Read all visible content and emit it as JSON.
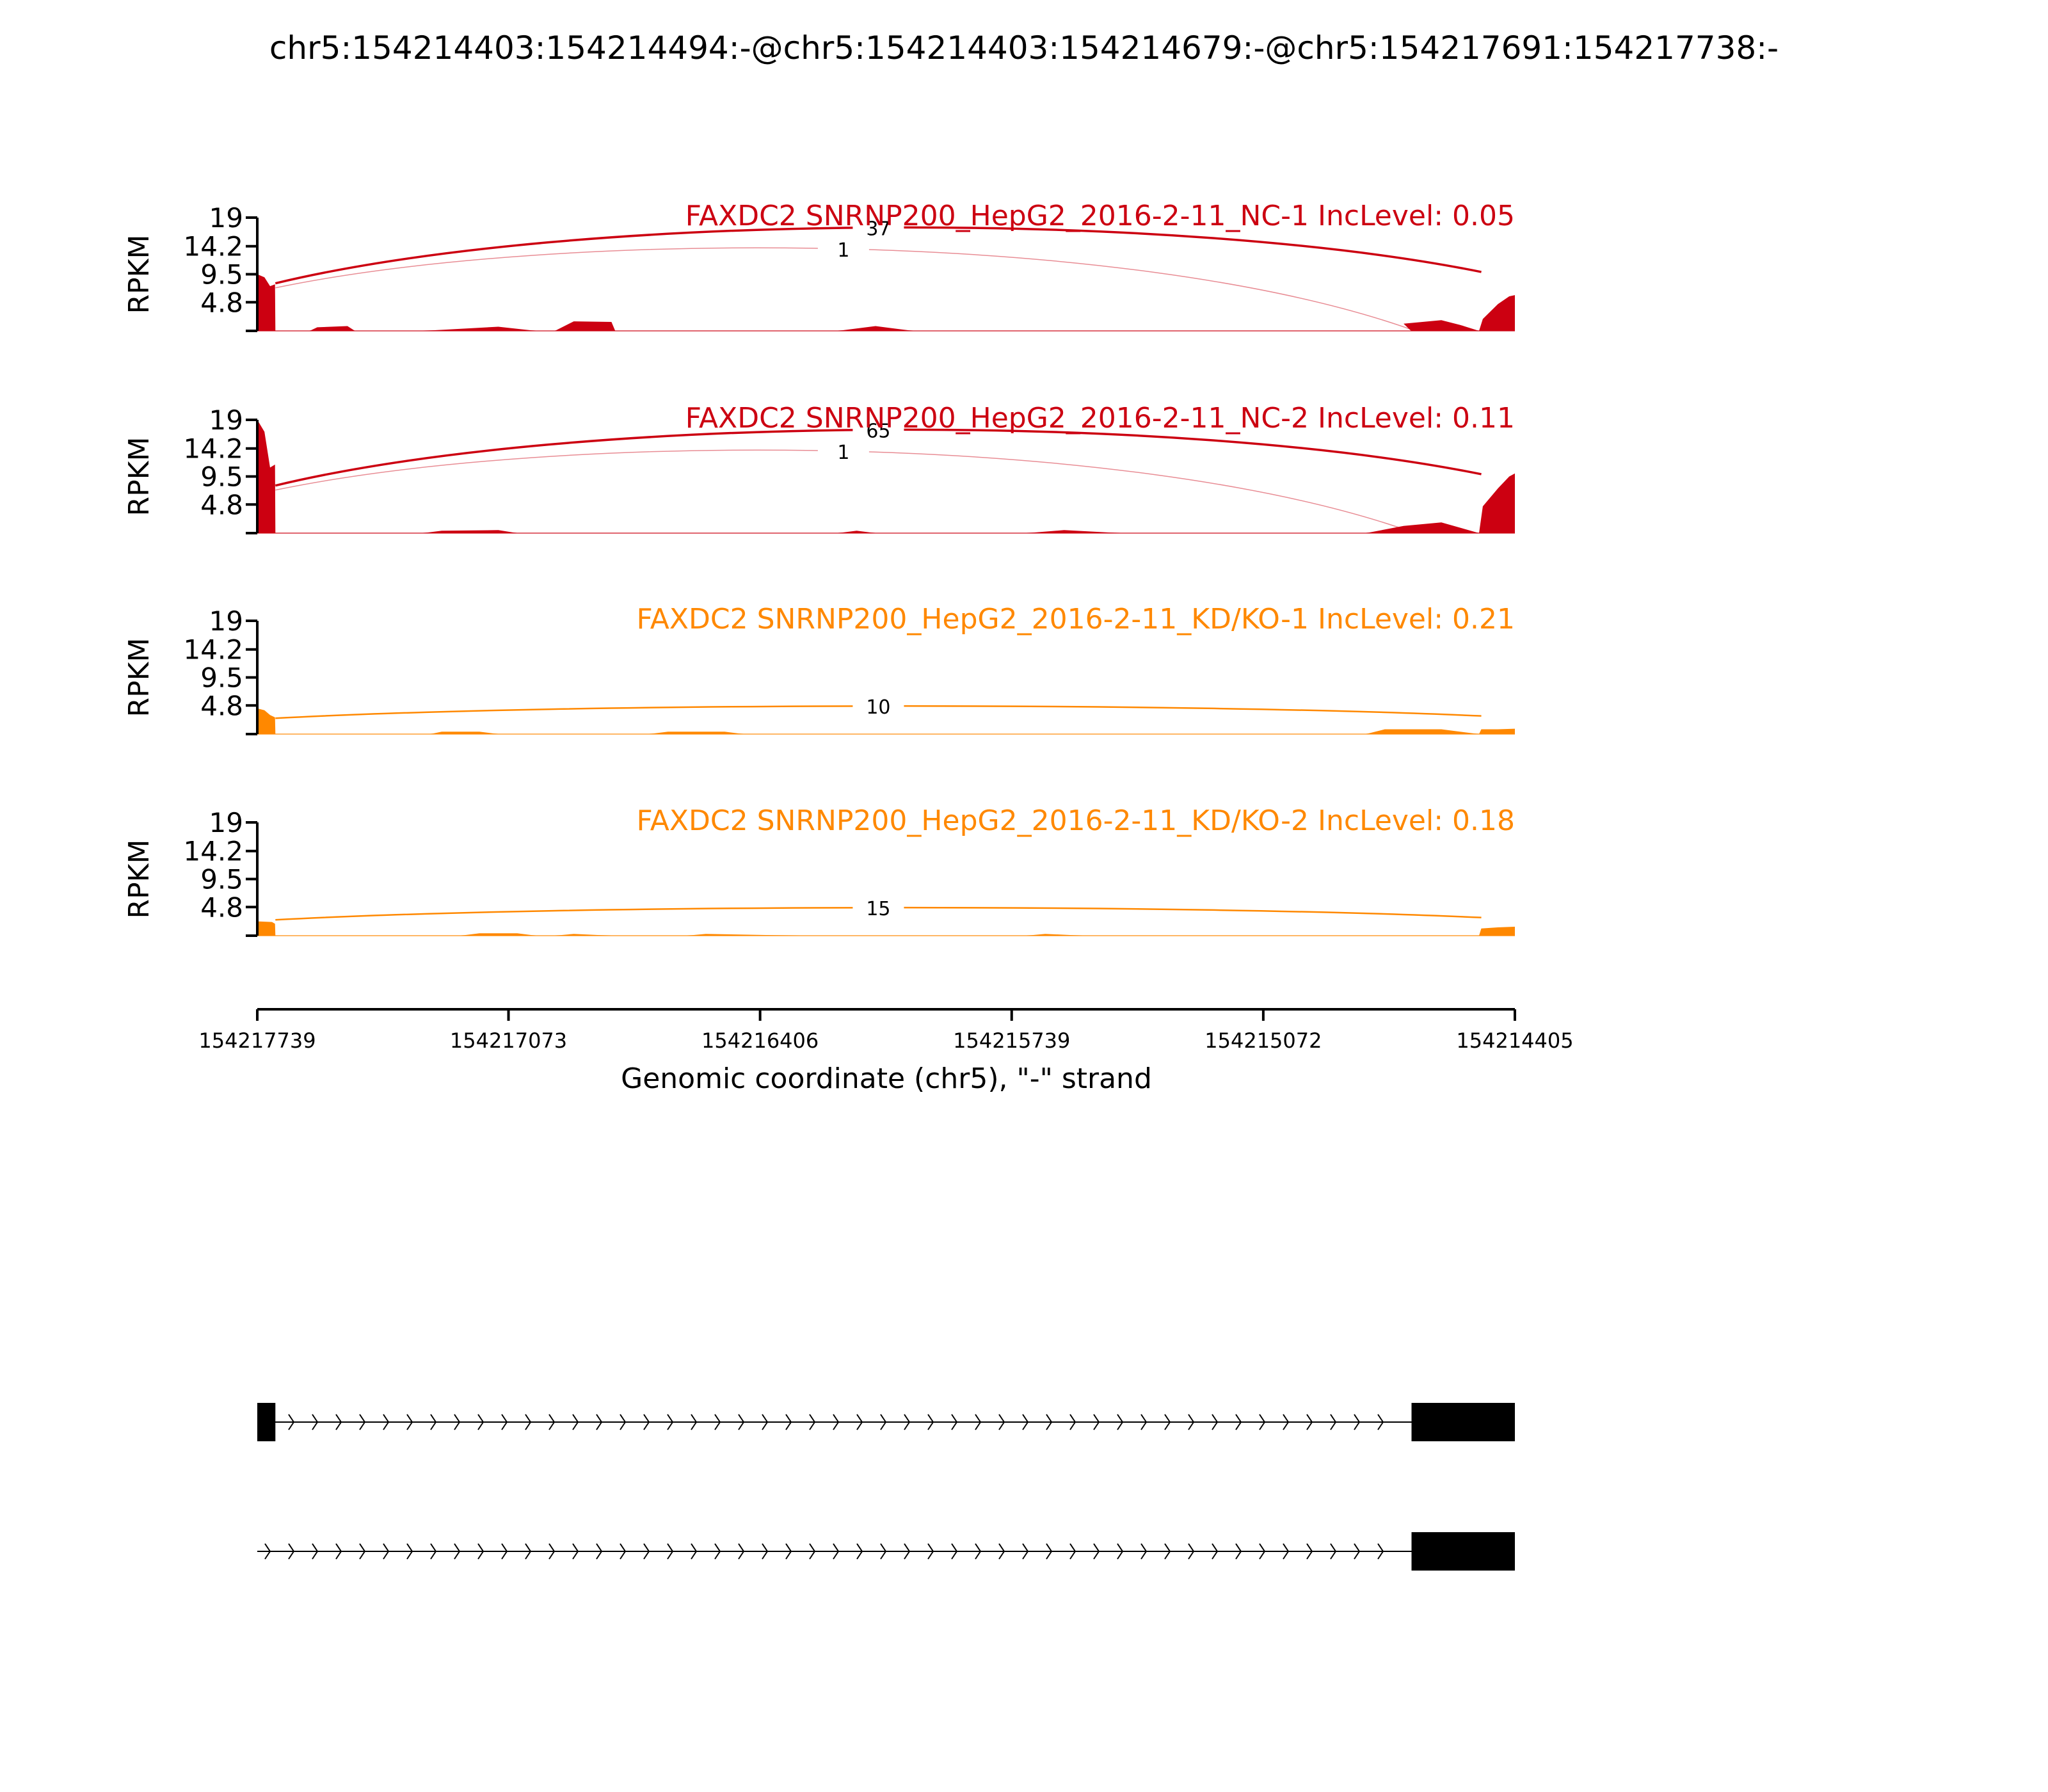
{
  "chart_data": {
    "type": "area",
    "title": "chr5:154214403:154214494:-@chr5:154214403:154214679:-@chr5:154217691:154217738:-",
    "xlabel": "Genomic coordinate (chr5), \"-\" strand",
    "x_range": [
      154217739,
      154214405
    ],
    "x_ticks": [
      "154217739",
      "154217073",
      "154216406",
      "154215739",
      "154215072",
      "154214405"
    ],
    "ylabel": "RPKM",
    "y_ticks": [
      "19",
      "14.2",
      "9.5",
      "4.8"
    ],
    "ylim": [
      0,
      19
    ],
    "panels": [
      {
        "name": "FAXDC2 SNRNP200_HepG2_2016-2-11_NC-1 IncLevel: 0.05",
        "color": "#cc0011",
        "coverage": [
          [
            154217739,
            9.5
          ],
          [
            154217720,
            9.0
          ],
          [
            154217705,
            7.5
          ],
          [
            154217692,
            7.8
          ],
          [
            154217691,
            0
          ],
          [
            154217600,
            0
          ],
          [
            154217580,
            0.6
          ],
          [
            154217500,
            0.8
          ],
          [
            154217480,
            0
          ],
          [
            154217300,
            0
          ],
          [
            154217100,
            0.7
          ],
          [
            154217000,
            0
          ],
          [
            154216950,
            0
          ],
          [
            154216900,
            1.6
          ],
          [
            154216800,
            1.5
          ],
          [
            154216790,
            0
          ],
          [
            154216200,
            0
          ],
          [
            154216100,
            0.8
          ],
          [
            154216000,
            0
          ],
          [
            154214680,
            0
          ],
          [
            154214700,
            1.2
          ],
          [
            154214600,
            1.8
          ],
          [
            154214550,
            1.0
          ],
          [
            154214500,
            0
          ],
          [
            154214490,
            2.0
          ],
          [
            154214450,
            4.5
          ],
          [
            154214420,
            5.8
          ],
          [
            154214405,
            6.0
          ]
        ],
        "junctions": [
          {
            "from": 154217691,
            "to": 154214494,
            "count": "37",
            "weight": "major"
          },
          {
            "from": 154217691,
            "to": 154214679,
            "count": "1",
            "weight": "minor"
          }
        ]
      },
      {
        "name": "FAXDC2 SNRNP200_HepG2_2016-2-11_NC-2 IncLevel: 0.11",
        "color": "#cc0011",
        "coverage": [
          [
            154217739,
            19
          ],
          [
            154217720,
            17.0
          ],
          [
            154217705,
            11.0
          ],
          [
            154217692,
            11.5
          ],
          [
            154217691,
            0
          ],
          [
            154217300,
            0
          ],
          [
            154217250,
            0.4
          ],
          [
            154217100,
            0.5
          ],
          [
            154217050,
            0
          ],
          [
            154216200,
            0
          ],
          [
            154216150,
            0.4
          ],
          [
            154216100,
            0
          ],
          [
            154215700,
            0
          ],
          [
            154215600,
            0.5
          ],
          [
            154215450,
            0
          ],
          [
            154214800,
            0
          ],
          [
            154214700,
            1.2
          ],
          [
            154214600,
            1.8
          ],
          [
            154214500,
            0
          ],
          [
            154214490,
            4.5
          ],
          [
            154214450,
            7.5
          ],
          [
            154214420,
            9.5
          ],
          [
            154214405,
            10.0
          ]
        ],
        "junctions": [
          {
            "from": 154217691,
            "to": 154214494,
            "count": "65",
            "weight": "major"
          },
          {
            "from": 154217691,
            "to": 154214679,
            "count": "1",
            "weight": "minor"
          }
        ]
      },
      {
        "name": "FAXDC2 SNRNP200_HepG2_2016-2-11_KD/KO-1 IncLevel: 0.21",
        "color": "#ff8800",
        "coverage": [
          [
            154217739,
            4.3
          ],
          [
            154217720,
            4.0
          ],
          [
            154217705,
            3.2
          ],
          [
            154217692,
            2.8
          ],
          [
            154217691,
            0
          ],
          [
            154217280,
            0
          ],
          [
            154217250,
            0.4
          ],
          [
            154217150,
            0.4
          ],
          [
            154217100,
            0
          ],
          [
            154216700,
            0
          ],
          [
            154216650,
            0.4
          ],
          [
            154216500,
            0.4
          ],
          [
            154216450,
            0
          ],
          [
            154214800,
            0
          ],
          [
            154214750,
            0.8
          ],
          [
            154214600,
            0.8
          ],
          [
            154214500,
            0
          ],
          [
            154214494,
            0.8
          ],
          [
            154214450,
            0.8
          ],
          [
            154214405,
            0.9
          ]
        ],
        "junctions": [
          {
            "from": 154217691,
            "to": 154214494,
            "count": "10",
            "weight": "single"
          }
        ]
      },
      {
        "name": "FAXDC2 SNRNP200_HepG2_2016-2-11_KD/KO-2 IncLevel: 0.18",
        "color": "#ff8800",
        "coverage": [
          [
            154217739,
            2.4
          ],
          [
            154217700,
            2.3
          ],
          [
            154217692,
            2.0
          ],
          [
            154217691,
            0
          ],
          [
            154217200,
            0
          ],
          [
            154217150,
            0.4
          ],
          [
            154217050,
            0.4
          ],
          [
            154217000,
            0
          ],
          [
            154216950,
            0
          ],
          [
            154216900,
            0.3
          ],
          [
            154216800,
            0
          ],
          [
            154216600,
            0
          ],
          [
            154216550,
            0.3
          ],
          [
            154216300,
            0
          ],
          [
            154215700,
            0
          ],
          [
            154215650,
            0.3
          ],
          [
            154215550,
            0
          ],
          [
            154214500,
            0
          ],
          [
            154214494,
            1.2
          ],
          [
            154214450,
            1.4
          ],
          [
            154214405,
            1.5
          ]
        ],
        "junctions": [
          {
            "from": 154217691,
            "to": 154214494,
            "count": "15",
            "weight": "single"
          }
        ]
      }
    ],
    "gene_models": [
      {
        "exons": [
          [
            154217739,
            154217691
          ],
          [
            154214679,
            154214405
          ]
        ]
      },
      {
        "exons": [
          [
            154214679,
            154214405
          ]
        ]
      }
    ]
  }
}
